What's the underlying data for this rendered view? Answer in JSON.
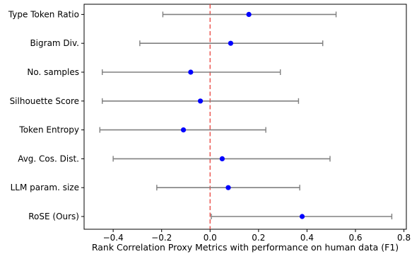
{
  "chart_data": {
    "type": "scatter",
    "title": "",
    "xlabel": "Rank Correlation Proxy Metrics with performance on human data (F1)",
    "ylabel": "",
    "xlim": [
      -0.52,
      0.81
    ],
    "xticks": [
      -0.4,
      -0.2,
      0.0,
      0.2,
      0.4,
      0.6,
      0.8
    ],
    "xtick_labels": [
      "−0.4",
      "−0.2",
      "0.0",
      "0.2",
      "0.4",
      "0.6",
      "0.8"
    ],
    "grid": false,
    "reference_line": {
      "x": 0.0,
      "color": "#e8423c",
      "style": "dashed"
    },
    "point_color": "#0000ff",
    "errorbar_color": "#808080",
    "categories": [
      "Type Token Ratio",
      "Bigram Div.",
      "No. samples",
      "Silhouette Score",
      "Token Entropy",
      "Avg. Cos. Dist.",
      "LLM param. size",
      "RoSE (Ours)"
    ],
    "values": [
      0.16,
      0.085,
      -0.08,
      -0.04,
      -0.11,
      0.05,
      0.075,
      0.38
    ],
    "lower": [
      -0.195,
      -0.29,
      -0.445,
      -0.445,
      -0.455,
      -0.4,
      -0.22,
      0.005
    ],
    "upper": [
      0.52,
      0.465,
      0.29,
      0.365,
      0.23,
      0.495,
      0.37,
      0.75
    ]
  }
}
